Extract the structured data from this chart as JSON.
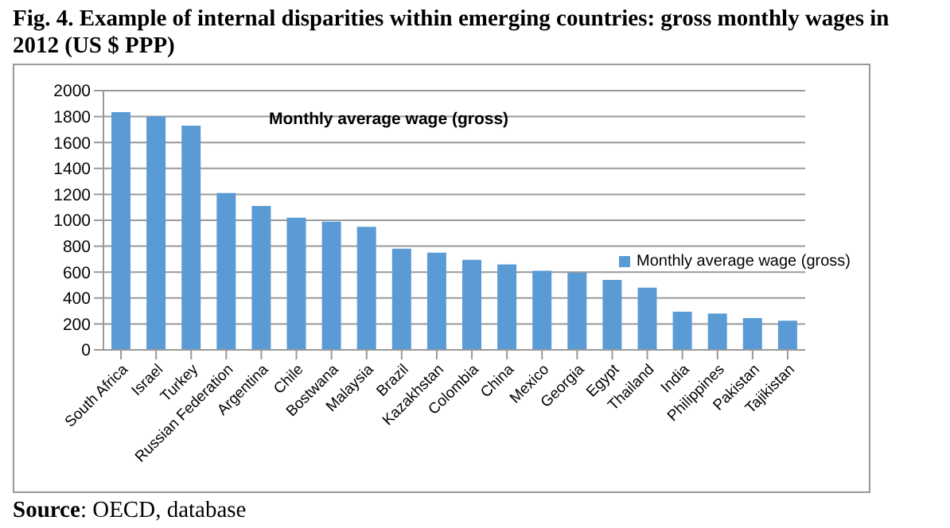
{
  "chart_data": {
    "type": "bar",
    "title": "Fig. 4. Example of internal disparities within emerging countries: gross monthly wages in 2012 (US $ PPP)",
    "subtitle": "Monthly average wage (gross)",
    "categories": [
      "South Africa",
      "Israel",
      "Turkey",
      "Russian Federation",
      "Argentina",
      "Chile",
      "Bostwana",
      "Malaysia",
      "Brazil",
      "Kazakhstan",
      "Colombia",
      "China",
      "Mexico",
      "Georgia",
      "Egypt",
      "Thailand",
      "India",
      "Philippines",
      "Pakistan",
      "Tajikistan"
    ],
    "series": [
      {
        "name": "Monthly average wage (gross)",
        "color": "#5b9bd5",
        "values": [
          1835,
          1800,
          1730,
          1210,
          1110,
          1020,
          990,
          950,
          780,
          750,
          695,
          660,
          610,
          595,
          540,
          480,
          295,
          280,
          245,
          225
        ]
      }
    ],
    "ylim": [
      0,
      2000
    ],
    "yticks": [
      0,
      200,
      400,
      600,
      800,
      1000,
      1200,
      1400,
      1600,
      1800,
      2000
    ],
    "grid": "y",
    "legend": "right",
    "annotations": [
      "Source: OECD, database"
    ]
  }
}
